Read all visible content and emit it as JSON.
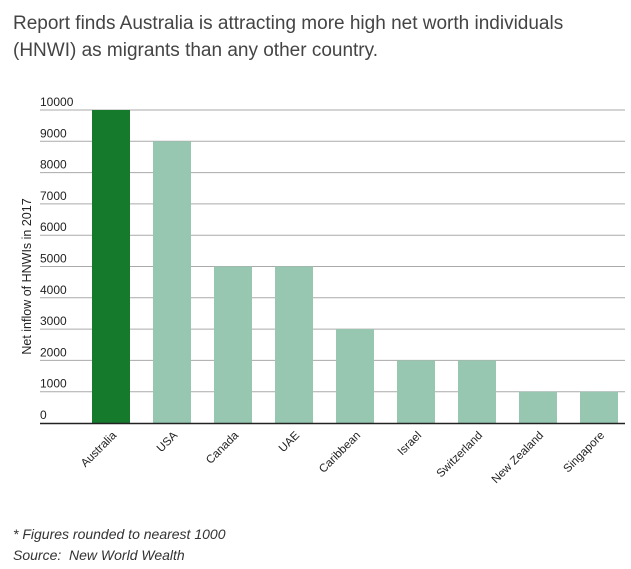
{
  "title": "Report finds Australia is attracting more high net worth individuals (HNWI) as migrants than any other country.",
  "footnote": "* Figures rounded to nearest 1000",
  "source": "Source:  New World Wealth",
  "colors": {
    "highlight": "#157a2c",
    "bar": "#97c7b1",
    "grid": "#aaaaaa",
    "axis": "#222222"
  },
  "chart_data": {
    "type": "bar",
    "categories": [
      "Australia",
      "USA",
      "Canada",
      "UAE",
      "Caribbean",
      "Israel",
      "Switzerland",
      "New Zealand",
      "Singapore"
    ],
    "values": [
      10000,
      9000,
      5000,
      5000,
      3000,
      2000,
      2000,
      1000,
      1000
    ],
    "highlight": "Australia",
    "ylabel": "Net inflow of HNWIs in 2017",
    "xlabel": "",
    "ylim": [
      0,
      10000
    ],
    "yticks": [
      0,
      1000,
      2000,
      3000,
      4000,
      5000,
      6000,
      7000,
      8000,
      9000,
      10000
    ],
    "grid": true
  }
}
